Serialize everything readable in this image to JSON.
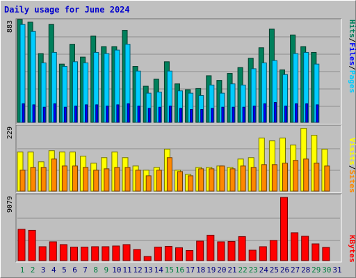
{
  "title": "Daily usage for June 2024",
  "colors": {
    "hits": "#00805c",
    "files": "#0000ff",
    "pages": "#00ccff",
    "visits": "#ffff00",
    "sites": "#ff8800",
    "kbytes": "#ff0000",
    "weekend_label": "#008040",
    "weekday_label": "#000080"
  },
  "chart_data": [
    {
      "type": "bar",
      "panel": "top",
      "y_max_label": "883",
      "ylim": [
        0,
        883
      ],
      "legend": [
        "Pages",
        "Files",
        "Hits"
      ],
      "categories": [
        "1",
        "2",
        "3",
        "4",
        "5",
        "6",
        "7",
        "8",
        "9",
        "10",
        "11",
        "12",
        "13",
        "14",
        "15",
        "16",
        "17",
        "18",
        "19",
        "20",
        "21",
        "22",
        "23",
        "24",
        "25",
        "26",
        "27",
        "28",
        "29",
        "30",
        "31"
      ],
      "weekend_days": [
        "1",
        "2",
        "8",
        "9",
        "15",
        "16",
        "22",
        "23",
        "29",
        "30"
      ],
      "series": [
        {
          "name": "Hits",
          "values": [
            883,
            860,
            590,
            840,
            500,
            670,
            560,
            740,
            650,
            650,
            790,
            480,
            310,
            370,
            520,
            330,
            280,
            290,
            400,
            360,
            420,
            470,
            550,
            640,
            800,
            450,
            750,
            650,
            600,
            0,
            0
          ]
        },
        {
          "name": "Files",
          "values": [
            160,
            150,
            130,
            160,
            130,
            140,
            150,
            150,
            140,
            150,
            160,
            140,
            120,
            130,
            140,
            120,
            110,
            110,
            120,
            130,
            130,
            130,
            140,
            160,
            170,
            140,
            160,
            160,
            150,
            0,
            0
          ]
        },
        {
          "name": "Pages",
          "values": [
            840,
            780,
            510,
            600,
            480,
            520,
            510,
            600,
            590,
            620,
            670,
            440,
            250,
            260,
            440,
            270,
            250,
            230,
            320,
            250,
            330,
            320,
            460,
            510,
            530,
            410,
            590,
            600,
            500,
            0,
            0
          ]
        }
      ]
    },
    {
      "type": "bar",
      "panel": "middle",
      "y_max_label": "229",
      "ylim": [
        0,
        229
      ],
      "legend": [
        "Sites",
        "Visits"
      ],
      "categories": [
        "1",
        "2",
        "3",
        "4",
        "5",
        "6",
        "7",
        "8",
        "9",
        "10",
        "11",
        "12",
        "13",
        "14",
        "15",
        "16",
        "17",
        "18",
        "19",
        "20",
        "21",
        "22",
        "23",
        "24",
        "25",
        "26",
        "27",
        "28",
        "29",
        "30",
        "31"
      ],
      "series": [
        {
          "name": "Visits",
          "values": [
            140,
            140,
            105,
            145,
            140,
            140,
            125,
            100,
            120,
            140,
            120,
            90,
            75,
            85,
            150,
            75,
            60,
            85,
            85,
            90,
            85,
            115,
            120,
            190,
            180,
            190,
            165,
            225,
            200,
            150,
            0
          ]
        },
        {
          "name": "Sites",
          "values": [
            75,
            85,
            85,
            115,
            90,
            90,
            85,
            75,
            80,
            85,
            85,
            75,
            55,
            75,
            120,
            70,
            55,
            80,
            80,
            90,
            80,
            90,
            85,
            95,
            95,
            100,
            110,
            115,
            100,
            90,
            0
          ]
        }
      ]
    },
    {
      "type": "bar",
      "panel": "bottom",
      "y_max_label": "9079",
      "ylim": [
        0,
        9079
      ],
      "legend": [
        "KBytes"
      ],
      "categories": [
        "1",
        "2",
        "3",
        "4",
        "5",
        "6",
        "7",
        "8",
        "9",
        "10",
        "11",
        "12",
        "13",
        "14",
        "15",
        "16",
        "17",
        "18",
        "19",
        "20",
        "21",
        "22",
        "23",
        "24",
        "25",
        "26",
        "27",
        "28",
        "29",
        "30",
        "31"
      ],
      "series": [
        {
          "name": "KBytes",
          "values": [
            4500,
            4350,
            2000,
            2700,
            2300,
            1950,
            1950,
            2000,
            2000,
            2100,
            2300,
            1600,
            600,
            1950,
            2050,
            1850,
            1450,
            2800,
            3650,
            2700,
            2750,
            3450,
            1500,
            2000,
            2900,
            9079,
            4000,
            3500,
            2400,
            1900,
            0
          ]
        }
      ]
    }
  ]
}
